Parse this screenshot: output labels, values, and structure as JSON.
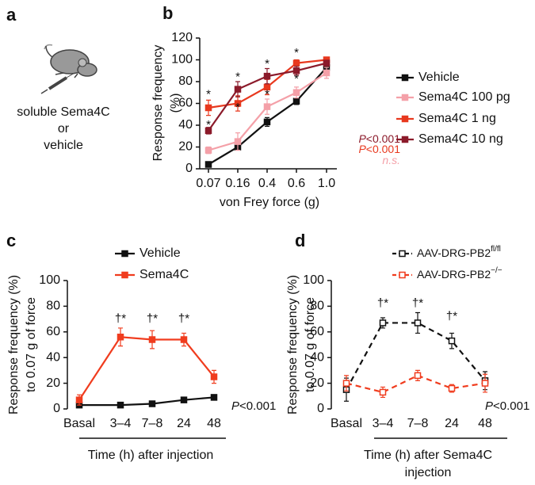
{
  "panel_labels": [
    "a",
    "b",
    "c",
    "d"
  ],
  "illustration": {
    "caption": [
      "soluble Sema4C",
      "or",
      "vehicle"
    ]
  },
  "chart_data": [
    {
      "type": "line",
      "ylabel": [
        "Response frequency",
        "(%)"
      ],
      "xlabel": [
        "von Frey force (g)"
      ],
      "categories": [
        "0.07",
        "0.16",
        "0.4",
        "0.6",
        "1.0"
      ],
      "ylim": [
        0,
        120
      ],
      "yticks": [
        0,
        20,
        40,
        60,
        80,
        100,
        120
      ],
      "series": [
        {
          "name": "Vehicle",
          "color": "#111111",
          "values": [
            4,
            20,
            43,
            62,
            93
          ],
          "errors": [
            1,
            2,
            4,
            3,
            2
          ]
        },
        {
          "name": "Sema4C 100 pg",
          "color": "#f4a0a8",
          "values": [
            17,
            25,
            57,
            70,
            88
          ],
          "errors": [
            3,
            8,
            7,
            5,
            5
          ]
        },
        {
          "name": "Sema4C 1 ng",
          "color": "#e8381e",
          "values": [
            56,
            60,
            75,
            97,
            100
          ],
          "errors": [
            7,
            7,
            7,
            3,
            2
          ]
        },
        {
          "name": "Sema4C 10 ng",
          "color": "#8b1a2a",
          "values": [
            35,
            73,
            85,
            90,
            97
          ],
          "errors": [
            3,
            7,
            7,
            4,
            2
          ]
        }
      ],
      "annotations": [
        {
          "text": "*",
          "x": "0.07",
          "y": 68
        },
        {
          "text": "*",
          "x": "0.07",
          "y": 40
        },
        {
          "text": "*",
          "x": "0.16",
          "y": 84
        },
        {
          "text": "*",
          "x": "0.16",
          "y": 56
        },
        {
          "text": "*",
          "x": "0.4",
          "y": 96
        },
        {
          "text": "*",
          "x": "0.4",
          "y": 68
        },
        {
          "text": "*",
          "x": "0.6",
          "y": 106
        },
        {
          "text": "*",
          "x": "0.6",
          "y": 82
        }
      ],
      "stats": [
        {
          "prefix": "P",
          "text": "<0.001",
          "color": "#8b1a2a"
        },
        {
          "prefix": "P",
          "text": "<0.001",
          "color": "#e8381e"
        },
        {
          "text": "n.s.",
          "italic": true,
          "color": "#f4a0a8"
        }
      ]
    },
    {
      "type": "line",
      "ylabel": [
        "Response frequency (%)",
        "to 0.07 g of force"
      ],
      "xlabel": [
        "Time (h) after injection"
      ],
      "categories": [
        "Basal",
        "3–4",
        "7–8",
        "24",
        "48"
      ],
      "ylim": [
        0,
        100
      ],
      "yticks": [
        0,
        20,
        40,
        60,
        80,
        100
      ],
      "series": [
        {
          "name": "Vehicle",
          "color": "#111111",
          "values": [
            3,
            3,
            4,
            7,
            9
          ],
          "errors": [
            1,
            1,
            2,
            2,
            2
          ]
        },
        {
          "name": "Sema4C",
          "color": "#f03c1e",
          "values": [
            7,
            56,
            54,
            54,
            25
          ],
          "errors": [
            4,
            7,
            7,
            5,
            5
          ]
        }
      ],
      "annotations": [
        {
          "text": "†*",
          "x": "3–4",
          "y": 70
        },
        {
          "text": "†*",
          "x": "7–8",
          "y": 70
        },
        {
          "text": "†*",
          "x": "24",
          "y": 70
        }
      ],
      "stats": [
        {
          "prefix": "P",
          "text": "<0.001",
          "color": "#111111"
        }
      ]
    },
    {
      "type": "line",
      "ylabel": [
        "Response frequency (%)",
        "to 0.07 g of force"
      ],
      "xlabel": [
        "Time (h) after Sema4C",
        "injection"
      ],
      "categories": [
        "Basal",
        "3–4",
        "7–8",
        "24",
        "48"
      ],
      "ylim": [
        0,
        100
      ],
      "yticks": [
        0,
        20,
        40,
        60,
        80,
        100
      ],
      "series": [
        {
          "name": "AAV-DRG-PB2",
          "sup": "fl/fl",
          "color": "#111111",
          "dashed": true,
          "open_marker": true,
          "values": [
            15,
            67,
            67,
            53,
            22
          ],
          "errors": [
            9,
            4,
            8,
            6,
            7
          ]
        },
        {
          "name": "AAV-DRG-PB2",
          "sup": "−/−",
          "color": "#f03c1e",
          "dashed": true,
          "open_marker": true,
          "values": [
            20,
            13,
            26,
            16,
            20
          ],
          "errors": [
            6,
            4,
            4,
            3,
            7
          ]
        }
      ],
      "annotations": [
        {
          "text": "†*",
          "x": "3–4",
          "y": 82
        },
        {
          "text": "†*",
          "x": "7–8",
          "y": 82
        },
        {
          "text": "†*",
          "x": "24",
          "y": 72
        }
      ],
      "stats": [
        {
          "prefix": "P",
          "text": "<0.001",
          "color": "#111111"
        }
      ]
    }
  ]
}
